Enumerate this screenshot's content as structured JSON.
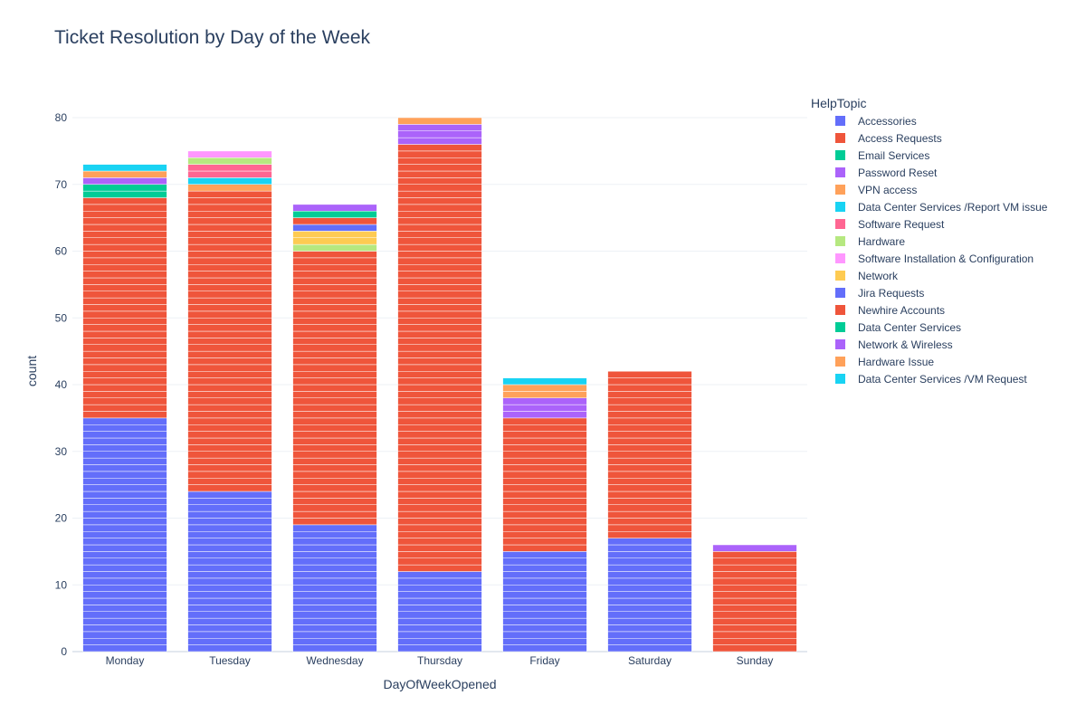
{
  "chart_data": {
    "type": "bar",
    "title": "Ticket Resolution by Day of the Week",
    "xlabel": "DayOfWeekOpened",
    "ylabel": "count",
    "legend_title": "HelpTopic",
    "legend_position": "right",
    "barmode": "stack",
    "ylim": [
      0,
      80
    ],
    "yticks": [
      0,
      10,
      20,
      30,
      40,
      50,
      60,
      70,
      80
    ],
    "grid": true,
    "categories": [
      "Monday",
      "Tuesday",
      "Wednesday",
      "Thursday",
      "Friday",
      "Saturday",
      "Sunday"
    ],
    "series": [
      {
        "name": "Accessories",
        "color": "#636efa",
        "values": [
          0,
          0,
          0,
          0,
          0,
          0,
          0
        ]
      },
      {
        "name": "Access Requests",
        "color": "#EF553B",
        "values": [
          0,
          0,
          0,
          0,
          0,
          0,
          0
        ]
      },
      {
        "name": "Email Services",
        "color": "#00cc96",
        "values": [
          0,
          0,
          0,
          0,
          0,
          0,
          0
        ]
      },
      {
        "name": "Password Reset",
        "color": "#ab63fa",
        "values": [
          0,
          0,
          0,
          0,
          0,
          0,
          0
        ]
      },
      {
        "name": "VPN access",
        "color": "#FFA15A",
        "values": [
          0,
          0,
          0,
          0,
          0,
          0,
          0
        ]
      },
      {
        "name": "Data Center Services /Report VM issue",
        "color": "#19d3f3",
        "values": [
          0,
          0,
          0,
          0,
          0,
          0,
          0
        ]
      },
      {
        "name": "Software Request",
        "color": "#FF6692",
        "values": [
          0,
          0,
          0,
          0,
          0,
          0,
          0
        ]
      },
      {
        "name": "Hardware",
        "color": "#B6E880",
        "values": [
          0,
          0,
          0,
          0,
          0,
          0,
          0
        ]
      },
      {
        "name": "Software Installation & Configuration",
        "color": "#FF97FF",
        "values": [
          0,
          0,
          0,
          0,
          0,
          0,
          0
        ]
      },
      {
        "name": "Network",
        "color": "#FECB52",
        "values": [
          0,
          0,
          0,
          0,
          0,
          0,
          0
        ]
      },
      {
        "name": "Jira Requests",
        "color": "#636efa",
        "values": [
          35,
          24,
          19,
          12,
          15,
          17,
          0
        ]
      },
      {
        "name": "Newhire Accounts",
        "color": "#EF553B",
        "values": [
          33,
          45,
          41,
          64,
          20,
          25,
          15
        ]
      },
      {
        "name": "Data Center Services",
        "color": "#00cc96",
        "values": [
          2,
          0,
          1,
          0,
          0,
          0,
          0
        ]
      },
      {
        "name": "Network & Wireless",
        "color": "#ab63fa",
        "values": [
          1,
          0,
          1,
          3,
          3,
          0,
          1
        ]
      },
      {
        "name": "Hardware Issue",
        "color": "#FFA15A",
        "values": [
          1,
          1,
          0,
          1,
          2,
          0,
          0
        ]
      },
      {
        "name": "Data Center Services /VM Request",
        "color": "#19d3f3",
        "values": [
          1,
          1,
          0,
          0,
          1,
          0,
          0
        ]
      }
    ],
    "extra_segments": [
      {
        "day": "Tuesday",
        "name": "Software Request",
        "color": "#FF6692",
        "after": "Data Center Services /VM Request",
        "value": 2
      },
      {
        "day": "Tuesday",
        "name": "Hardware",
        "color": "#B6E880",
        "after": "Software Request",
        "value": 1
      },
      {
        "day": "Tuesday",
        "name": "Software Installation & Configuration",
        "color": "#FF97FF",
        "after": "Hardware",
        "value": 1
      },
      {
        "day": "Wednesday",
        "name": "Hardware",
        "color": "#B6E880",
        "after": "Newhire Accounts",
        "value": 1
      },
      {
        "day": "Wednesday",
        "name": "Network",
        "color": "#FECB52",
        "after": "Hardware",
        "value": 2
      },
      {
        "day": "Wednesday",
        "name": "Accessories",
        "color": "#636efa",
        "after": "Network",
        "value": 1
      },
      {
        "day": "Wednesday",
        "name": "Access Requests",
        "color": "#EF553B",
        "after": "Accessories",
        "value": 1
      }
    ]
  }
}
